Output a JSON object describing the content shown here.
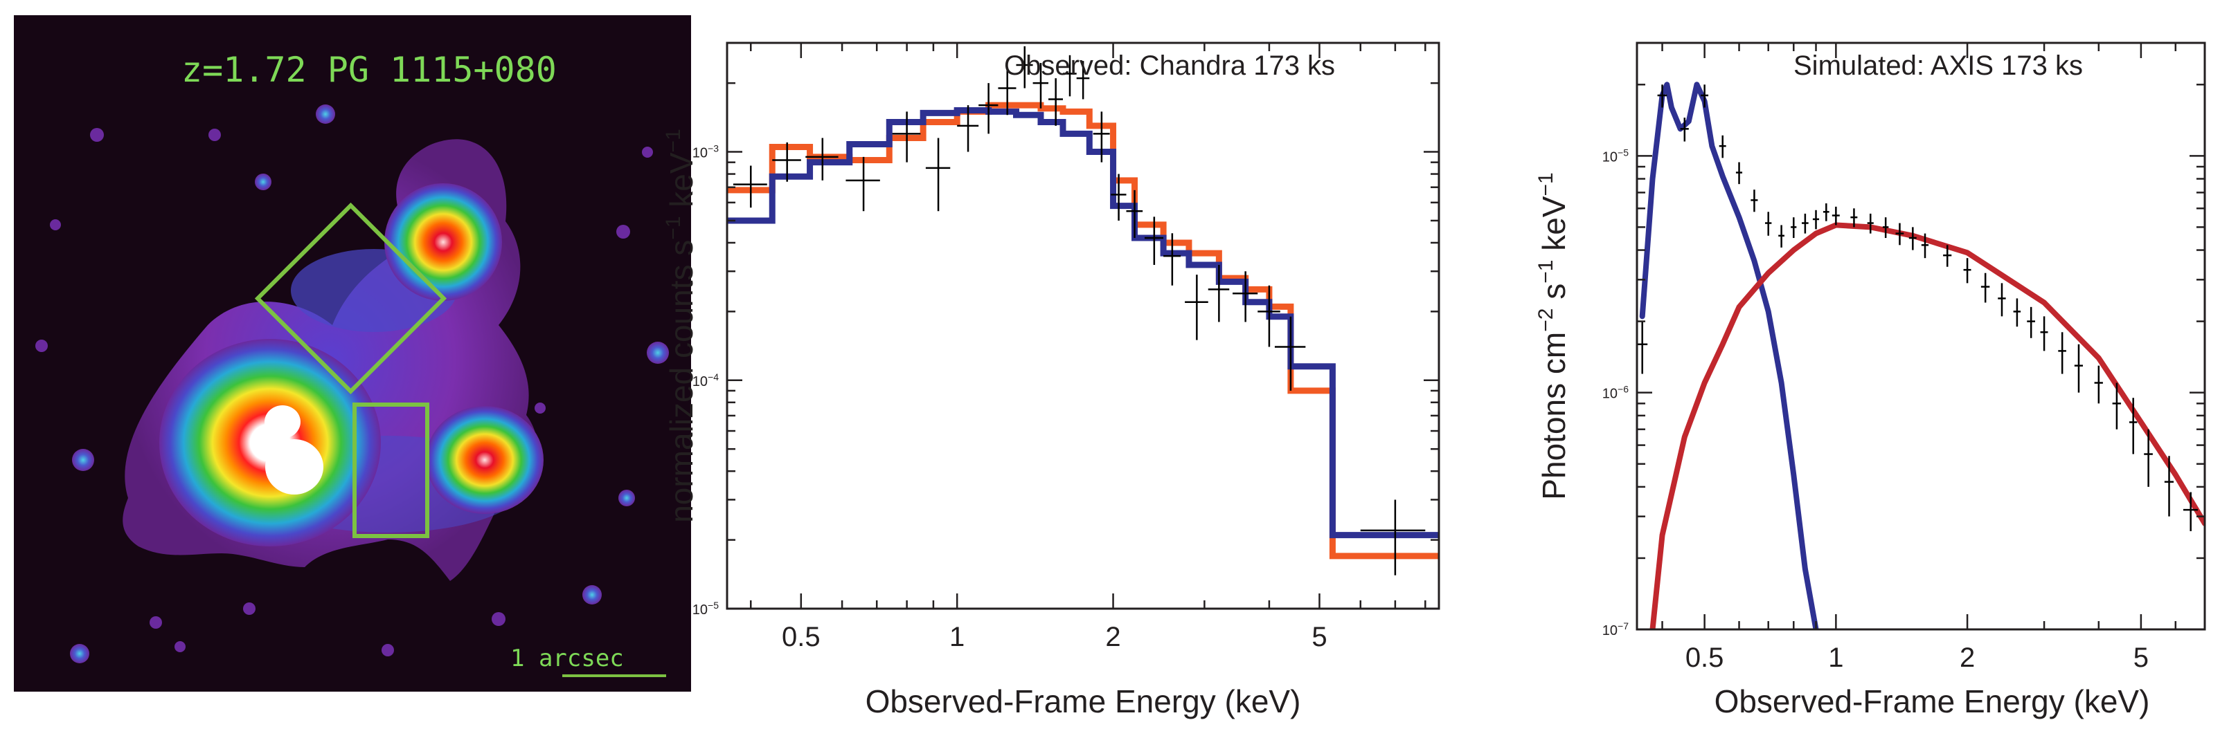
{
  "image_panel": {
    "label": "z=1.72 PG 1115+080",
    "scale_label": "1 arcsec",
    "colors": {
      "background": "#160614",
      "box": "#7cc242"
    }
  },
  "chart_data": [
    {
      "type": "line",
      "title": "",
      "annotation": "Observed: Chandra 173 ks",
      "xlabel": "Observed-Frame Energy (keV)",
      "ylabel": "normalized counts s",
      "ylabel_sup1": "−1",
      "ylabel_mid": " keV",
      "ylabel_sup2": "−1",
      "xscale": "log",
      "yscale": "log",
      "xlim": [
        0.36,
        8.5
      ],
      "ylim": [
        1e-05,
        0.003
      ],
      "x_ticks": [
        {
          "value": 0.5,
          "label": "0.5"
        },
        {
          "value": 1,
          "label": "1"
        },
        {
          "value": 2,
          "label": "2"
        },
        {
          "value": 5,
          "label": "5"
        }
      ],
      "y_ticks": [
        {
          "value": 1e-05,
          "label": "10",
          "sup": "−5"
        },
        {
          "value": 0.0001,
          "label": "10",
          "sup": "−4"
        },
        {
          "value": 0.001,
          "label": "10",
          "sup": "−3"
        }
      ],
      "series": [
        {
          "name": "model orange",
          "color": "#f15a24",
          "style": "step",
          "edges": [
            0.36,
            0.44,
            0.52,
            0.62,
            0.74,
            0.86,
            1.0,
            1.15,
            1.3,
            1.45,
            1.6,
            1.8,
            2.0,
            2.2,
            2.5,
            2.8,
            3.2,
            3.6,
            4.0,
            4.4,
            5.3,
            8.5
          ],
          "values": [
            0.00068,
            0.00105,
            0.00095,
            0.00092,
            0.00115,
            0.00135,
            0.0015,
            0.0016,
            0.0016,
            0.00155,
            0.0015,
            0.0013,
            0.00075,
            0.00048,
            0.0004,
            0.00036,
            0.00028,
            0.00025,
            0.00021,
            9e-05,
            1.7e-05
          ]
        },
        {
          "name": "model blue",
          "color": "#2e3192",
          "style": "step",
          "edges": [
            0.36,
            0.44,
            0.52,
            0.62,
            0.74,
            0.86,
            1.0,
            1.15,
            1.3,
            1.45,
            1.6,
            1.8,
            2.0,
            2.2,
            2.5,
            2.8,
            3.2,
            3.6,
            4.0,
            4.4,
            5.3,
            8.5
          ],
          "values": [
            0.0005,
            0.00078,
            0.0009,
            0.00108,
            0.00135,
            0.00148,
            0.00152,
            0.0015,
            0.00145,
            0.00135,
            0.0012,
            0.001,
            0.00058,
            0.00042,
            0.00036,
            0.00032,
            0.00027,
            0.00022,
            0.00019,
            0.000115,
            2.1e-05
          ]
        },
        {
          "name": "data",
          "color": "#000000",
          "style": "errorbar",
          "x": [
            0.4,
            0.47,
            0.55,
            0.66,
            0.8,
            0.92,
            1.05,
            1.15,
            1.25,
            1.35,
            1.45,
            1.55,
            1.65,
            1.75,
            1.9,
            2.05,
            2.2,
            2.4,
            2.6,
            2.9,
            3.2,
            3.6,
            4.0,
            4.4,
            7.0
          ],
          "y": [
            0.00072,
            0.00092,
            0.00095,
            0.00075,
            0.0012,
            0.00085,
            0.0013,
            0.0016,
            0.0019,
            0.0024,
            0.002,
            0.0017,
            0.0022,
            0.0021,
            0.0012,
            0.00065,
            0.00055,
            0.00042,
            0.00035,
            0.00022,
            0.00025,
            0.00024,
            0.0002,
            0.00014,
            2.2e-05
          ],
          "xerr": [
            0.03,
            0.03,
            0.04,
            0.05,
            0.05,
            0.05,
            0.05,
            0.05,
            0.05,
            0.05,
            0.05,
            0.05,
            0.05,
            0.05,
            0.07,
            0.07,
            0.08,
            0.1,
            0.1,
            0.15,
            0.15,
            0.2,
            0.2,
            0.3,
            1.0
          ],
          "yerr": [
            0.00015,
            0.00018,
            0.0002,
            0.0002,
            0.0003,
            0.0003,
            0.0003,
            0.0004,
            0.00045,
            0.0005,
            0.00045,
            0.0004,
            0.00045,
            0.0004,
            0.0003,
            0.00015,
            0.00013,
            0.0001,
            9e-05,
            7e-05,
            7e-05,
            6e-05,
            6e-05,
            5e-05,
            8e-06
          ]
        }
      ]
    },
    {
      "type": "line",
      "title": "",
      "annotation": "Simulated: AXIS 173 ks",
      "xlabel": "Observed-Frame Energy (keV)",
      "ylabel": "Photons cm",
      "ylabel_sup1": "−2",
      "ylabel_mid": " s",
      "ylabel_sup2": "−1",
      "ylabel_end": " keV",
      "ylabel_sup3": "−1",
      "xscale": "log",
      "yscale": "log",
      "xlim": [
        0.35,
        7.0
      ],
      "ylim": [
        1e-07,
        3e-05
      ],
      "x_ticks": [
        {
          "value": 0.5,
          "label": "0.5"
        },
        {
          "value": 1,
          "label": "1"
        },
        {
          "value": 2,
          "label": "2"
        },
        {
          "value": 5,
          "label": "5"
        }
      ],
      "y_ticks": [
        {
          "value": 1e-07,
          "label": "10",
          "sup": "−7"
        },
        {
          "value": 1e-06,
          "label": "10",
          "sup": "−6"
        },
        {
          "value": 1e-05,
          "label": "10",
          "sup": "−5"
        }
      ],
      "series": [
        {
          "name": "soft component",
          "color": "#2e3192",
          "style": "line",
          "x": [
            0.36,
            0.38,
            0.4,
            0.41,
            0.42,
            0.44,
            0.46,
            0.48,
            0.5,
            0.52,
            0.55,
            0.6,
            0.65,
            0.7,
            0.75,
            0.8,
            0.85,
            0.9
          ],
          "y": [
            2.1e-06,
            8e-06,
            1.8e-05,
            2e-05,
            1.6e-05,
            1.3e-05,
            1.4e-05,
            2e-05,
            1.7e-05,
            1.1e-05,
            8.2e-06,
            5.5e-06,
            3.6e-06,
            2.2e-06,
            1.1e-06,
            4.5e-07,
            1.8e-07,
            1e-07
          ]
        },
        {
          "name": "power-law component",
          "color": "#c1272d",
          "style": "line",
          "x": [
            0.38,
            0.4,
            0.45,
            0.5,
            0.55,
            0.6,
            0.7,
            0.8,
            0.9,
            1.0,
            1.2,
            1.5,
            2.0,
            3.0,
            4.0,
            5.0,
            6.0,
            7.0
          ],
          "y": [
            1e-07,
            2.5e-07,
            6.5e-07,
            1.1e-06,
            1.6e-06,
            2.3e-06,
            3.2e-06,
            4e-06,
            4.7e-06,
            5.1e-06,
            5e-06,
            4.6e-06,
            3.9e-06,
            2.4e-06,
            1.4e-06,
            7.5e-07,
            4.5e-07,
            2.8e-07
          ]
        },
        {
          "name": "data",
          "color": "#000000",
          "style": "errorbar",
          "x": [
            0.36,
            0.4,
            0.45,
            0.5,
            0.55,
            0.6,
            0.65,
            0.7,
            0.75,
            0.8,
            0.85,
            0.9,
            0.95,
            1.0,
            1.1,
            1.2,
            1.3,
            1.4,
            1.5,
            1.6,
            1.8,
            2.0,
            2.2,
            2.4,
            2.6,
            2.8,
            3.0,
            3.3,
            3.6,
            4.0,
            4.4,
            4.8,
            5.2,
            5.8,
            6.5
          ],
          "y": [
            1.6e-06,
            1.8e-05,
            1.3e-05,
            1.8e-05,
            1.1e-05,
            8.5e-06,
            6.5e-06,
            5.2e-06,
            4.6e-06,
            5e-06,
            5.2e-06,
            5.4e-06,
            5.8e-06,
            5.6e-06,
            5.5e-06,
            5.2e-06,
            5e-06,
            4.7e-06,
            4.5e-06,
            4.2e-06,
            3.8e-06,
            3.3e-06,
            2.8e-06,
            2.5e-06,
            2.2e-06,
            2e-06,
            1.8e-06,
            1.5e-06,
            1.3e-06,
            1.1e-06,
            9e-07,
            7.5e-07,
            5.5e-07,
            4.2e-07,
            3.2e-07
          ],
          "xerr": [
            0.01,
            0.01,
            0.01,
            0.01,
            0.01,
            0.01,
            0.012,
            0.012,
            0.012,
            0.012,
            0.015,
            0.015,
            0.015,
            0.02,
            0.02,
            0.02,
            0.02,
            0.03,
            0.03,
            0.03,
            0.04,
            0.04,
            0.05,
            0.05,
            0.05,
            0.06,
            0.06,
            0.07,
            0.08,
            0.09,
            0.1,
            0.1,
            0.12,
            0.14,
            0.25
          ],
          "yerr": [
            4e-07,
            2e-06,
            1.5e-06,
            2e-06,
            1.2e-06,
            9e-07,
            7e-07,
            6e-07,
            5e-07,
            5e-07,
            5e-07,
            5e-07,
            5e-07,
            5e-07,
            5e-07,
            5e-07,
            5e-07,
            5e-07,
            5e-07,
            5e-07,
            4e-07,
            4e-07,
            4e-07,
            4e-07,
            3e-07,
            3e-07,
            3e-07,
            3e-07,
            3e-07,
            2e-07,
            2e-07,
            2e-07,
            1.5e-07,
            1.2e-07,
            6e-08
          ]
        }
      ]
    }
  ]
}
